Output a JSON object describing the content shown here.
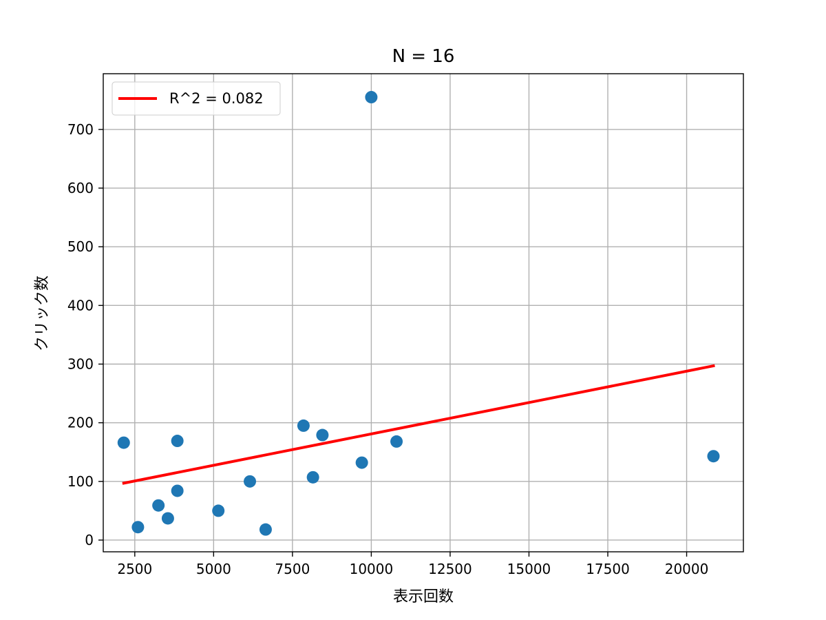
{
  "chart_data": {
    "type": "scatter",
    "title": "N = 16",
    "xlabel": "表示回数",
    "ylabel": "クリック数",
    "xlim": [
      1500,
      21800
    ],
    "ylim": [
      -20,
      795
    ],
    "xticks": [
      2500,
      5000,
      7500,
      10000,
      12500,
      15000,
      17500,
      20000
    ],
    "yticks": [
      0,
      100,
      200,
      300,
      400,
      500,
      600,
      700
    ],
    "grid": true,
    "legend_position": "top-left",
    "series": [
      {
        "type": "scatter",
        "color": "#1f77b4",
        "points": [
          {
            "x": 2150,
            "y": 166
          },
          {
            "x": 2600,
            "y": 22
          },
          {
            "x": 3250,
            "y": 59
          },
          {
            "x": 3550,
            "y": 37
          },
          {
            "x": 3850,
            "y": 169
          },
          {
            "x": 3850,
            "y": 84
          },
          {
            "x": 5150,
            "y": 50
          },
          {
            "x": 6150,
            "y": 100
          },
          {
            "x": 6650,
            "y": 18
          },
          {
            "x": 7850,
            "y": 195
          },
          {
            "x": 8150,
            "y": 107
          },
          {
            "x": 8450,
            "y": 179
          },
          {
            "x": 9700,
            "y": 132
          },
          {
            "x": 10000,
            "y": 755
          },
          {
            "x": 10800,
            "y": 168
          },
          {
            "x": 20850,
            "y": 143
          }
        ]
      },
      {
        "type": "line",
        "name": "R^2 = 0.082",
        "color": "#ff0000",
        "points": [
          {
            "x": 2150,
            "y": 97
          },
          {
            "x": 20850,
            "y": 297
          }
        ]
      }
    ]
  }
}
